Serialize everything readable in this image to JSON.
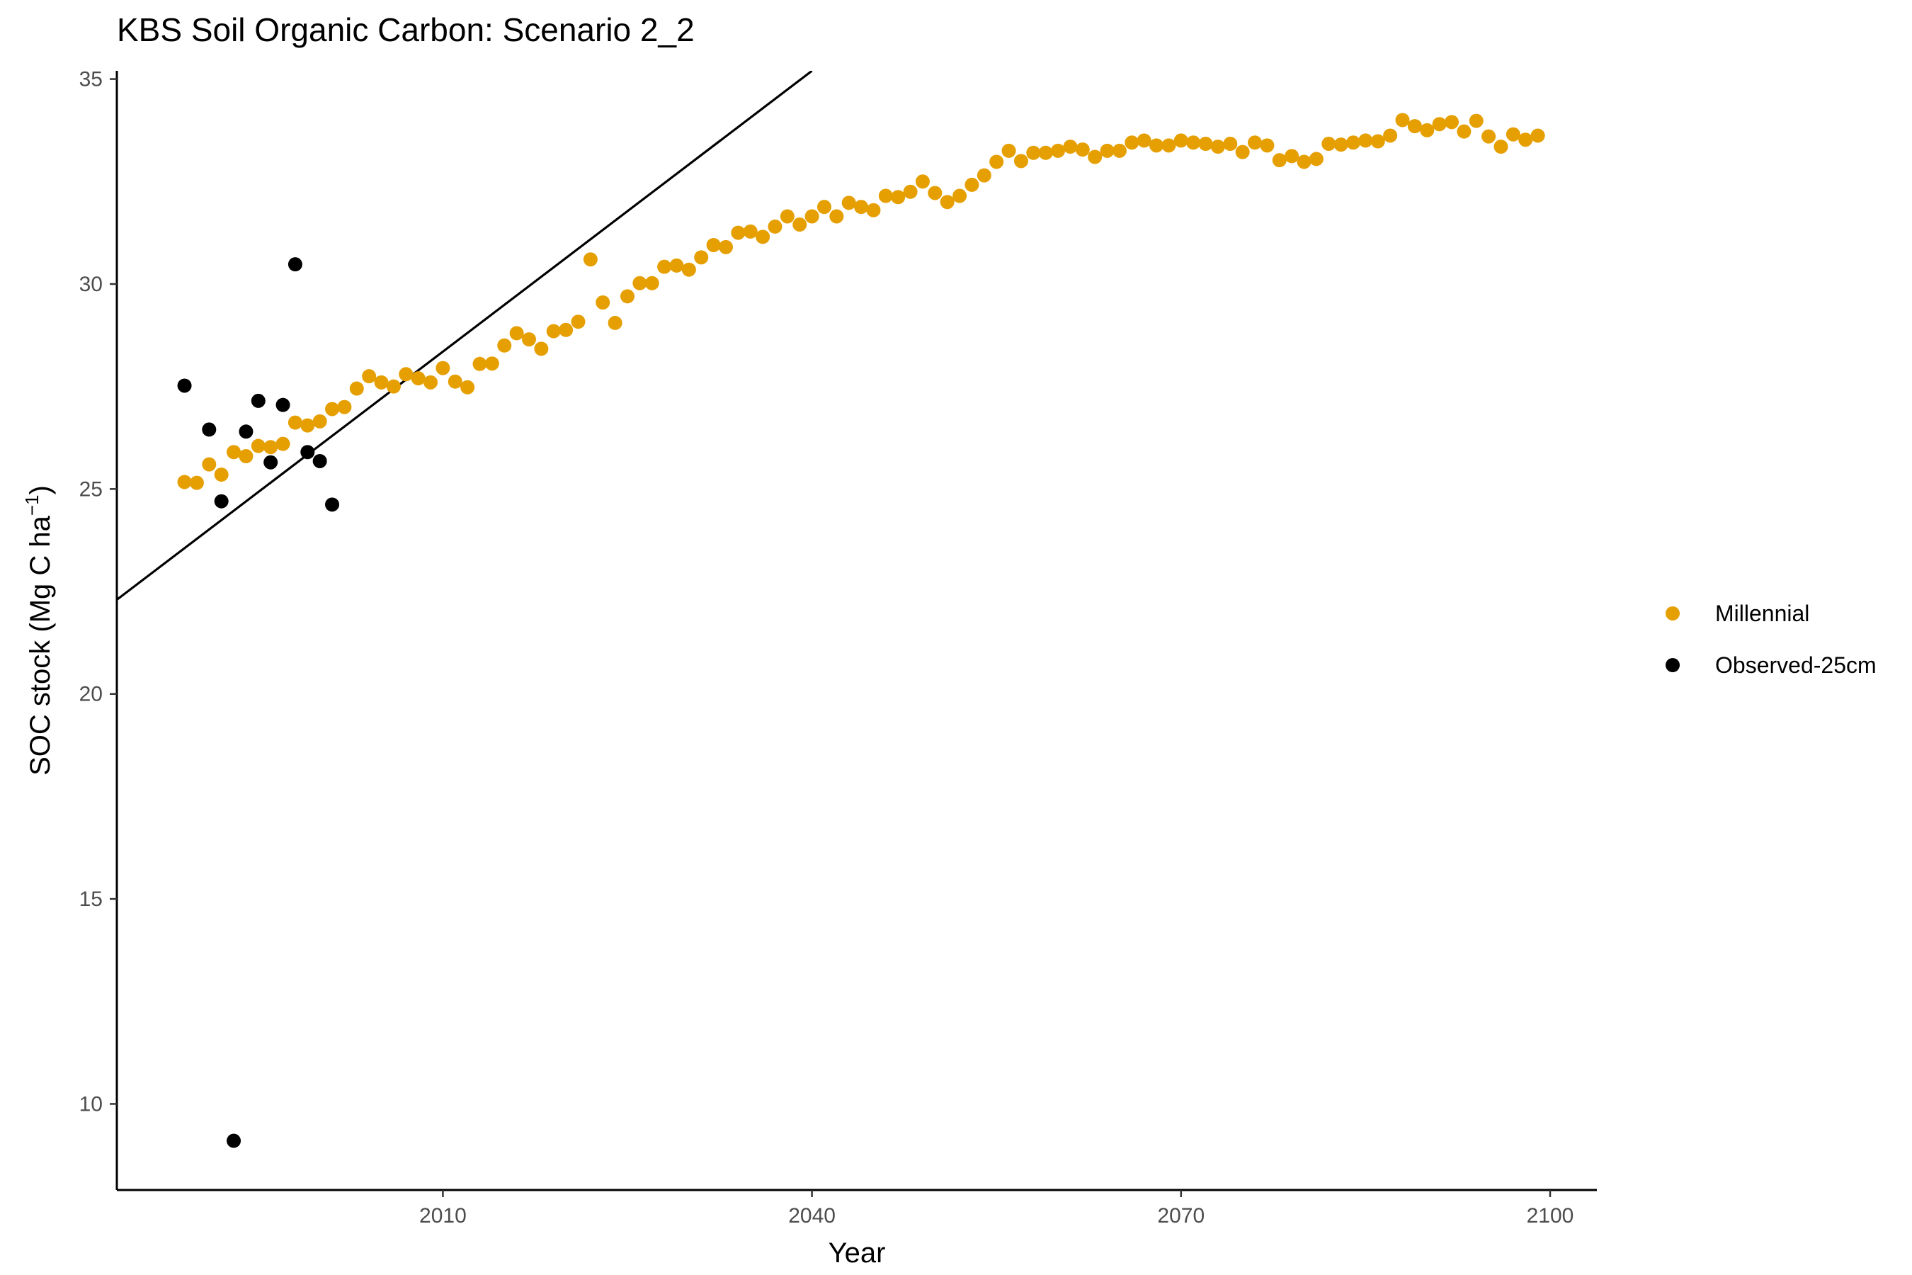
{
  "chart_data": {
    "type": "scatter",
    "title": "KBS Soil Organic Carbon: Scenario  2_2",
    "xlabel": "Year",
    "ylabel_main": "SOC stock (Mg C ha",
    "ylabel_sup": "−1",
    "ylabel_close": ")",
    "xlim": [
      1983.5,
      2103.8
    ],
    "ylim": [
      7.9,
      35.2
    ],
    "x_ticks": [
      2010,
      2040,
      2070,
      2100
    ],
    "x_tick_labels": [
      "2010",
      "2040",
      "2070",
      "2100"
    ],
    "y_ticks": [
      10,
      15,
      20,
      25,
      30,
      35
    ],
    "y_tick_labels": [
      "10",
      "15",
      "20",
      "25",
      "30",
      "35"
    ],
    "grid": false,
    "legend_position": "right",
    "legend": [
      {
        "label": "Millennial",
        "color": "#E69F00"
      },
      {
        "label": "Observed-25cm",
        "color": "#000000"
      }
    ],
    "series": [
      {
        "name": "Millennial",
        "color": "#E69F00",
        "x": [
          1989,
          1990,
          1991,
          1992,
          1993,
          1994,
          1995,
          1996,
          1997,
          1998,
          1999,
          2000,
          2001,
          2002,
          2003,
          2004,
          2005,
          2006,
          2007,
          2008,
          2009,
          2010,
          2011,
          2012,
          2013,
          2014,
          2015,
          2016,
          2017,
          2018,
          2019,
          2020,
          2021,
          2022,
          2023,
          2024,
          2025,
          2026,
          2027,
          2028,
          2029,
          2030,
          2031,
          2032,
          2033,
          2034,
          2035,
          2036,
          2037,
          2038,
          2039,
          2040,
          2041,
          2042,
          2043,
          2044,
          2045,
          2046,
          2047,
          2048,
          2049,
          2050,
          2051,
          2052,
          2053,
          2054,
          2055,
          2056,
          2057,
          2058,
          2059,
          2060,
          2061,
          2062,
          2063,
          2064,
          2065,
          2066,
          2067,
          2068,
          2069,
          2070,
          2071,
          2072,
          2073,
          2074,
          2075,
          2076,
          2077,
          2078,
          2079,
          2080,
          2081,
          2082,
          2083,
          2084,
          2085,
          2086,
          2087,
          2088,
          2089,
          2090,
          2091,
          2092,
          2093,
          2094,
          2095,
          2096,
          2097,
          2098,
          2099
        ],
        "y": [
          25.17,
          25.15,
          25.6,
          25.35,
          25.9,
          25.8,
          26.05,
          26.02,
          26.1,
          26.62,
          26.55,
          26.65,
          26.95,
          27.0,
          27.45,
          27.75,
          27.6,
          27.5,
          27.8,
          27.7,
          27.6,
          27.95,
          27.62,
          27.48,
          28.05,
          28.06,
          28.5,
          28.8,
          28.65,
          28.42,
          28.85,
          28.88,
          29.08,
          30.6,
          29.55,
          29.05,
          29.7,
          30.02,
          30.02,
          30.42,
          30.45,
          30.35,
          30.65,
          30.95,
          30.9,
          31.25,
          31.28,
          31.15,
          31.4,
          31.65,
          31.45,
          31.65,
          31.88,
          31.65,
          31.98,
          31.88,
          31.8,
          32.15,
          32.12,
          32.25,
          32.5,
          32.22,
          32.0,
          32.15,
          32.42,
          32.65,
          32.98,
          33.25,
          33.0,
          33.2,
          33.2,
          33.25,
          33.35,
          33.28,
          33.1,
          33.25,
          33.25,
          33.45,
          33.5,
          33.38,
          33.38,
          33.5,
          33.45,
          33.42,
          33.35,
          33.42,
          33.22,
          33.45,
          33.38,
          33.02,
          33.12,
          32.98,
          33.05,
          33.42,
          33.4,
          33.45,
          33.5,
          33.48,
          33.62,
          34.0,
          33.85,
          33.75,
          33.9,
          33.95,
          33.72,
          33.98,
          33.6,
          33.35,
          33.65,
          33.52,
          33.62
        ]
      },
      {
        "name": "Observed-25cm",
        "color": "#000000",
        "x": [
          1989,
          1991,
          1992,
          1993,
          1994,
          1995,
          1996,
          1997,
          1998,
          1999,
          2000,
          2001
        ],
        "y": [
          27.52,
          26.45,
          24.7,
          9.1,
          26.4,
          27.15,
          25.65,
          27.05,
          30.48,
          25.9,
          25.68,
          24.62
        ]
      }
    ],
    "trend_line": {
      "from": {
        "x": 1983.5,
        "y": 22.3
      },
      "to": {
        "x": 2040,
        "y": 35.2
      }
    }
  }
}
